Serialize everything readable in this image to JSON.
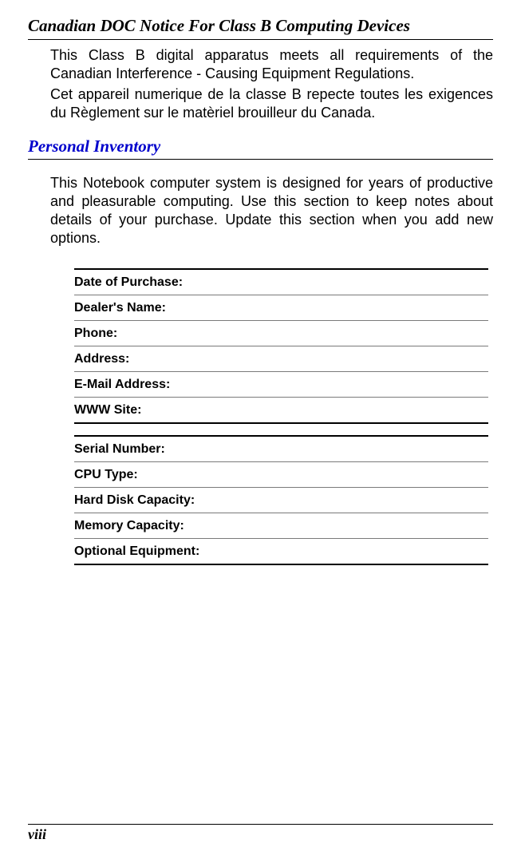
{
  "heading1": "Canadian DOC Notice For Class B Computing Devices",
  "para1": "This Class B digital apparatus meets all requirements of the Canadian Interference - Causing Equipment Regulations.",
  "para2": "Cet appareil numerique de la classe B repecte toutes les exigences du Règlement sur le matèriel brouilleur du Canada.",
  "heading2": "Personal Inventory",
  "para3": "This Notebook computer system is designed for years of productive and pleasurable computing. Use this section to keep notes about details of your purchase. Update this section when you add new options.",
  "table1": {
    "rows": [
      "Date of Purchase:",
      "Dealer's Name:",
      "Phone:",
      "Address:",
      "E-Mail Address:",
      "WWW Site:"
    ]
  },
  "table2": {
    "rows": [
      "Serial Number:",
      "CPU Type:",
      "Hard Disk Capacity:",
      "Memory Capacity:",
      "Optional Equipment:"
    ]
  },
  "page_number": "viii"
}
